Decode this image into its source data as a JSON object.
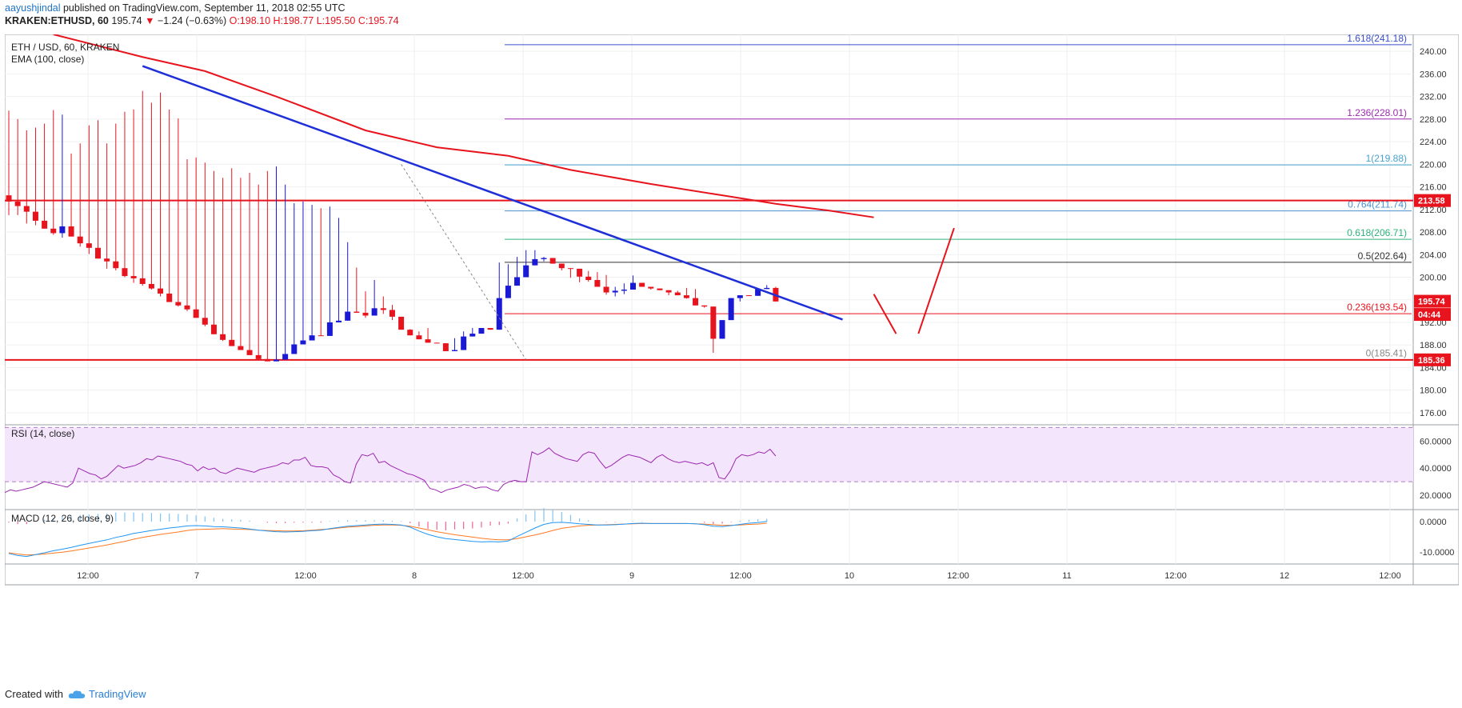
{
  "header": {
    "user": "aayushjindal",
    "published": " published on TradingView.com, September 11, 2018 02:55 UTC",
    "symbol": "KRAKEN:ETHUSD, 60",
    "last": "195.74",
    "change": "−1.24 (−0.63%)",
    "ohlc": "O:198.10 H:198.77 L:195.50 C:195.74"
  },
  "footer": {
    "created_with": "Created with",
    "brand": "TradingView"
  },
  "colors": {
    "up": "#1a1ad6",
    "down": "#e8141d",
    "ema": "#e8141d",
    "trend": "#1f2fd8",
    "rsi_line": "#9c27b0",
    "rsi_band": "#f3e5fb",
    "macd_line": "#2196f3",
    "signal_line": "#ff7a22",
    "hist_pos": "#2196f3",
    "hist_neg": "#e91e63"
  },
  "chart_data": {
    "type": "candlestick",
    "title": "ETH / USD, 60, KRAKEN",
    "indicator": "EMA (100, close)",
    "ylim": [
      174,
      243
    ],
    "y_ticks": [
      "176.00",
      "180.00",
      "184.00",
      "188.00",
      "192.00",
      "196.00",
      "200.00",
      "204.00",
      "208.00",
      "212.00",
      "216.00",
      "220.00",
      "224.00",
      "228.00",
      "232.00",
      "236.00",
      "240.00"
    ],
    "x_ticks": [
      "12:00",
      "7",
      "12:00",
      "8",
      "12:00",
      "9",
      "12:00",
      "10",
      "12:00",
      "11",
      "12:00",
      "12",
      "12:00"
    ],
    "candles": [
      [
        214.5,
        229.5,
        211.0,
        213.4
      ],
      [
        213.4,
        228.0,
        211.0,
        212.6
      ],
      [
        212.6,
        226.0,
        209.5,
        211.6
      ],
      [
        211.6,
        226.5,
        209.2,
        210.0
      ],
      [
        210.0,
        227.2,
        208.8,
        208.6
      ],
      [
        208.6,
        229.6,
        207.5,
        207.8
      ],
      [
        207.8,
        228.8,
        207.0,
        209.0
      ],
      [
        209.0,
        221.9,
        207.8,
        207.2
      ],
      [
        207.2,
        223.7,
        205.4,
        206.0
      ],
      [
        206.0,
        226.9,
        204.1,
        205.2
      ],
      [
        205.2,
        227.8,
        203.8,
        203.3
      ],
      [
        203.3,
        223.7,
        201.5,
        202.8
      ],
      [
        202.8,
        227.2,
        201.2,
        201.6
      ],
      [
        201.6,
        229.3,
        200.0,
        200.2
      ],
      [
        200.2,
        229.7,
        199.0,
        199.8
      ],
      [
        199.8,
        233.0,
        198.5,
        198.8
      ],
      [
        198.8,
        230.9,
        197.8,
        198.0
      ],
      [
        198.0,
        232.7,
        196.6,
        197.1
      ],
      [
        197.1,
        229.7,
        196.2,
        195.6
      ],
      [
        195.6,
        228.1,
        194.8,
        195.0
      ],
      [
        195.0,
        220.9,
        194.0,
        194.3
      ],
      [
        194.3,
        221.2,
        193.0,
        192.8
      ],
      [
        192.8,
        220.3,
        191.3,
        191.6
      ],
      [
        191.6,
        218.8,
        190.4,
        189.9
      ],
      [
        189.9,
        217.6,
        188.7,
        188.9
      ],
      [
        188.9,
        219.3,
        188.1,
        187.8
      ],
      [
        187.8,
        217.6,
        187.1,
        187.1
      ],
      [
        187.1,
        218.5,
        186.5,
        186.2
      ],
      [
        186.2,
        216.4,
        185.7,
        185.5
      ],
      [
        185.5,
        218.8,
        185.2,
        185.1
      ],
      [
        185.1,
        219.6,
        185.3,
        185.4
      ],
      [
        185.4,
        216.4,
        185.5,
        186.4
      ],
      [
        186.4,
        213.1,
        187.0,
        188.1
      ],
      [
        188.1,
        213.4,
        188.2,
        188.8
      ],
      [
        188.8,
        212.8,
        189.2,
        189.7
      ],
      [
        189.7,
        212.2,
        190.3,
        189.6
      ],
      [
        189.6,
        212.5,
        191.1,
        192.0
      ],
      [
        192.0,
        210.5,
        192.3,
        192.3
      ],
      [
        192.3,
        206.2,
        193.2,
        193.9
      ],
      [
        193.9,
        201.7,
        194.1,
        193.7
      ],
      [
        193.7,
        197.5,
        192.8,
        193.2
      ],
      [
        193.2,
        199.5,
        193.8,
        194.5
      ],
      [
        194.5,
        196.6,
        193.5,
        194.2
      ],
      [
        194.2,
        195.1,
        192.4,
        193.0
      ],
      [
        193.0,
        191.7,
        191.4,
        190.7
      ],
      [
        190.7,
        190.8,
        190.4,
        189.7
      ],
      [
        189.7,
        190.4,
        189.6,
        189.0
      ],
      [
        189.0,
        191.0,
        189.4,
        188.4
      ],
      [
        188.4,
        187.8,
        188.8,
        188.3
      ],
      [
        188.3,
        186.5,
        187.7,
        186.9
      ],
      [
        186.9,
        189.2,
        187.2,
        187.1
      ],
      [
        187.1,
        190.4,
        188.7,
        189.5
      ],
      [
        189.5,
        191.0,
        190.1,
        190.0
      ],
      [
        190.0,
        191.0,
        190.5,
        191.0
      ],
      [
        191.0,
        190.4,
        191.4,
        190.7
      ],
      [
        190.7,
        202.6,
        195.4,
        196.3
      ],
      [
        196.3,
        202.3,
        197.8,
        198.5
      ],
      [
        198.5,
        203.6,
        199.7,
        200.0
      ],
      [
        200.0,
        204.8,
        201.2,
        202.1
      ],
      [
        202.1,
        204.8,
        202.3,
        203.2
      ],
      [
        203.2,
        203.6,
        202.8,
        203.4
      ],
      [
        203.4,
        202.3,
        202.9,
        202.4
      ],
      [
        202.4,
        201.6,
        201.2,
        201.6
      ],
      [
        201.6,
        200.7,
        199.9,
        201.5
      ],
      [
        201.5,
        199.2,
        199.1,
        200.1
      ],
      [
        200.1,
        201.1,
        199.2,
        199.5
      ],
      [
        199.5,
        200.9,
        198.8,
        198.3
      ],
      [
        198.3,
        200.4,
        196.9,
        197.3
      ],
      [
        197.3,
        198.3,
        196.6,
        197.6
      ],
      [
        197.6,
        198.9,
        197.0,
        197.8
      ],
      [
        197.8,
        200.3,
        198.1,
        199.0
      ],
      [
        199.0,
        198.2,
        198.6,
        198.3
      ],
      [
        198.3,
        197.7,
        197.8,
        198.0
      ],
      [
        198.0,
        198.0,
        197.7,
        197.7
      ],
      [
        197.7,
        197.4,
        196.8,
        197.3
      ],
      [
        197.3,
        197.6,
        196.9,
        196.8
      ],
      [
        196.8,
        198.1,
        196.2,
        196.3
      ],
      [
        196.3,
        197.9,
        195.4,
        195.0
      ],
      [
        195.0,
        193.7,
        194.6,
        194.8
      ],
      [
        194.8,
        188.5,
        186.6,
        189.1
      ],
      [
        189.1,
        190.7,
        190.2,
        192.4
      ],
      [
        192.4,
        195.6,
        194.3,
        196.3
      ],
      [
        196.3,
        196.8,
        195.7,
        196.8
      ],
      [
        196.8,
        196.6,
        196.9,
        196.7
      ],
      [
        196.7,
        197.1,
        197.3,
        197.9
      ],
      [
        197.9,
        198.6,
        198.1,
        198.1
      ],
      [
        198.1,
        198.3,
        196.4,
        195.7
      ]
    ],
    "ema": [
      [
        5,
        243.0
      ],
      [
        15,
        239.0
      ],
      [
        22,
        236.5
      ],
      [
        30,
        232.0
      ],
      [
        40,
        226.0
      ],
      [
        48,
        223.0
      ],
      [
        56,
        221.5
      ],
      [
        63,
        219.0
      ],
      [
        72,
        216.5
      ],
      [
        80,
        214.5
      ],
      [
        86,
        213.0
      ],
      [
        92,
        211.8
      ],
      [
        97,
        210.6
      ]
    ],
    "trendline": [
      [
        15,
        237.4
      ],
      [
        93.5,
        192.5
      ]
    ],
    "dashed_fib_line": [
      [
        44,
        220.0
      ],
      [
        58,
        185.4
      ]
    ],
    "forecast": [
      [
        97,
        197.0
      ],
      [
        99.5,
        190.0
      ],
      [
        102,
        190.0
      ],
      [
        106,
        208.7
      ]
    ],
    "h_lines": [
      {
        "label": "213.58",
        "value": 213.58,
        "color": "#e8141d"
      },
      {
        "label": "185.36",
        "value": 185.36,
        "color": "#e8141d"
      }
    ],
    "fib_levels": [
      {
        "label": "1.618(241.18)",
        "value": 241.18,
        "color": "#3a4fc9"
      },
      {
        "label": "1.236(228.01)",
        "value": 228.01,
        "color": "#9c2bb0"
      },
      {
        "label": "1(219.88)",
        "value": 219.88,
        "color": "#49a3cf"
      },
      {
        "label": "0.764(211.74)",
        "value": 211.74,
        "color": "#4a8fcf"
      },
      {
        "label": "0.618(206.71)",
        "value": 206.71,
        "color": "#2fb37a"
      },
      {
        "label": "0.5(202.64)",
        "value": 202.64,
        "color": "#333333"
      },
      {
        "label": "0.236(193.54)",
        "value": 193.54,
        "color": "#e8141d"
      },
      {
        "label": "0(185.41)",
        "value": 185.41,
        "color": "#888888"
      }
    ],
    "price_tags": [
      {
        "label": "213.58",
        "value": 213.58
      },
      {
        "label": "195.74",
        "value": 195.74
      },
      {
        "label": "04:44",
        "value": 193.4
      },
      {
        "label": "185.36",
        "value": 185.36
      }
    ],
    "rsi": {
      "title": "RSI (14, close)",
      "ylim": [
        10,
        72
      ],
      "band": [
        30,
        70
      ],
      "ticks": [
        "20.0000",
        "40.0000",
        "60.0000"
      ],
      "values": [
        22,
        24,
        23,
        24,
        25,
        26,
        28,
        30,
        29,
        28,
        27,
        26,
        29,
        40,
        38,
        36,
        35,
        32,
        34,
        38,
        42,
        40,
        41,
        42,
        44,
        47,
        46,
        49,
        48,
        47,
        46,
        45,
        43,
        42,
        38,
        41,
        39,
        40,
        37,
        36,
        38,
        40,
        39,
        38,
        37,
        39,
        40,
        41,
        42,
        44,
        43,
        46,
        46,
        48,
        42,
        41,
        41,
        40,
        35,
        33,
        30,
        29,
        43,
        50,
        49,
        51,
        44,
        45,
        42,
        40,
        38,
        36,
        35,
        33,
        31,
        25,
        24,
        22,
        24,
        25,
        26,
        28,
        27,
        25,
        26,
        26,
        24,
        23,
        28,
        30,
        31,
        30,
        30,
        52,
        50,
        52,
        55,
        51,
        49,
        47,
        46,
        45,
        50,
        52,
        51,
        45,
        40,
        42,
        45,
        48,
        50,
        49,
        48,
        46,
        44,
        48,
        50,
        47,
        45,
        44,
        45,
        44,
        43,
        44,
        42,
        44,
        33,
        32,
        38,
        47,
        50,
        49,
        50,
        52,
        51,
        54,
        49
      ]
    },
    "macd": {
      "title": "MACD (12, 26, close, 9)",
      "ylim": [
        -14,
        4
      ],
      "ticks": [
        "0.0000",
        "-10.0000"
      ],
      "macd": [
        -10.5,
        -11.2,
        -11.5,
        -10.9,
        -10.3,
        -9.6,
        -9.1,
        -8.5,
        -7.8,
        -7.2,
        -6.6,
        -6.0,
        -5.2,
        -4.6,
        -3.9,
        -3.4,
        -2.9,
        -2.5,
        -2.1,
        -1.8,
        -1.4,
        -1.3,
        -1.4,
        -1.6,
        -1.7,
        -1.9,
        -2.1,
        -2.4,
        -2.8,
        -3.1,
        -3.3,
        -3.4,
        -3.3,
        -3.2,
        -3.0,
        -2.8,
        -2.3,
        -1.9,
        -1.5,
        -1.3,
        -1.1,
        -0.9,
        -0.8,
        -0.9,
        -1.1,
        -1.8,
        -3.1,
        -4.2,
        -5.0,
        -5.6,
        -5.9,
        -6.2,
        -6.5,
        -6.7,
        -6.6,
        -6.7,
        -6.4,
        -4.9,
        -3.5,
        -2.1,
        -0.9,
        -0.3,
        -0.2,
        -0.4,
        -0.7,
        -0.9,
        -1.1,
        -1.1,
        -1.0,
        -0.8,
        -0.6,
        -0.5,
        -0.6,
        -0.6,
        -0.6,
        -0.6,
        -0.6,
        -0.7,
        -1.0,
        -1.5,
        -1.6,
        -1.3,
        -0.9,
        -0.5,
        -0.3,
        0.1
      ],
      "signal": [
        -10.3,
        -10.7,
        -11.0,
        -10.9,
        -10.7,
        -10.4,
        -10.1,
        -9.7,
        -9.2,
        -8.7,
        -8.2,
        -7.7,
        -7.1,
        -6.5,
        -5.8,
        -5.2,
        -4.7,
        -4.2,
        -3.8,
        -3.4,
        -2.9,
        -2.6,
        -2.5,
        -2.4,
        -2.3,
        -2.4,
        -2.5,
        -2.6,
        -2.8,
        -2.9,
        -3.0,
        -3.1,
        -3.1,
        -3.0,
        -2.8,
        -2.6,
        -2.4,
        -2.1,
        -1.8,
        -1.6,
        -1.4,
        -1.2,
        -1.1,
        -1.1,
        -1.2,
        -1.5,
        -2.1,
        -2.7,
        -3.3,
        -3.8,
        -4.3,
        -4.7,
        -5.1,
        -5.5,
        -5.8,
        -6.0,
        -6.0,
        -5.6,
        -5.0,
        -4.4,
        -3.7,
        -2.9,
        -2.2,
        -1.8,
        -1.4,
        -1.2,
        -1.1,
        -1.0,
        -0.9,
        -0.8,
        -0.7,
        -0.6,
        -0.6,
        -0.6,
        -0.6,
        -0.6,
        -0.6,
        -0.7,
        -0.8,
        -1.0,
        -1.2,
        -1.2,
        -1.1,
        -0.9,
        -0.8,
        -0.5
      ]
    }
  }
}
